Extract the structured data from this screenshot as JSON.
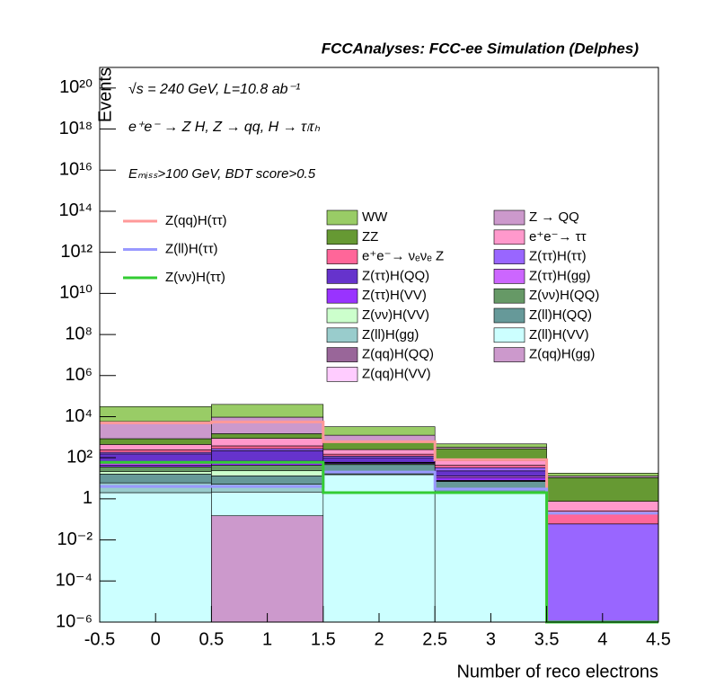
{
  "chart_data": {
    "type": "histogram",
    "stacked": true,
    "log_y": true,
    "title": "FCCAnalyses: FCC-ee Simulation (Delphes)",
    "annotations": [
      "√s = 240 GeV, L=10.8 ab⁻¹",
      "e⁺e⁻ → Z H, Z → qq, H → τₗτₕ",
      "Eₘᵢₛₛ>100 GeV, BDT score>0.5"
    ],
    "xlabel": "Number of reco electrons",
    "ylabel": "Events",
    "bins": [
      -0.5,
      0.5,
      1.5,
      2.5,
      3.5,
      4.5
    ],
    "xlim": [
      -0.5,
      4.5
    ],
    "xticks": [
      -0.5,
      0,
      0.5,
      1,
      1.5,
      2,
      2.5,
      3,
      3.5,
      4,
      4.5
    ],
    "ylim": [
      1e-06,
      1e+21
    ],
    "yticks": [
      {
        "value": 1e+20,
        "label": "10²⁰"
      },
      {
        "value": 1e+18,
        "label": "10¹⁸"
      },
      {
        "value": 1e+16,
        "label": "10¹⁶"
      },
      {
        "value": 100000000000000.0,
        "label": "10¹⁴"
      },
      {
        "value": 1000000000000.0,
        "label": "10¹²"
      },
      {
        "value": 10000000000.0,
        "label": "10¹⁰"
      },
      {
        "value": 100000000.0,
        "label": "10⁸"
      },
      {
        "value": 1000000.0,
        "label": "10⁶"
      },
      {
        "value": 10000.0,
        "label": "10⁴"
      },
      {
        "value": 100,
        "label": "10²"
      },
      1,
      {
        "value": 0.01,
        "label": "10⁻²"
      },
      {
        "value": 0.0001,
        "label": "10⁻⁴"
      },
      {
        "value": 1e-06,
        "label": "10⁻⁶"
      }
    ],
    "signals": [
      {
        "name": "Z(qq)H(ττ)",
        "color": "#ff9999",
        "values": [
          5000,
          5500,
          600,
          80,
          0
        ]
      },
      {
        "name": "Z(ll)H(ττ)",
        "color": "#9999ff",
        "values": [
          4,
          4,
          20,
          3,
          0.2
        ]
      },
      {
        "name": "Z(νν)H(ττ)",
        "color": "#33cc33",
        "values": [
          60,
          60,
          2,
          2,
          0
        ]
      }
    ],
    "series": [
      {
        "name": "WW",
        "color": "#99cc66",
        "values": [
          25000,
          30000,
          2000,
          150,
          5
        ]
      },
      {
        "name": "Z → QQ",
        "color": "#cc99cc",
        "values": [
          5000,
          8000,
          600,
          50,
          2
        ]
      },
      {
        "name": "ZZ",
        "color": "#669933",
        "values": [
          400,
          600,
          400,
          200,
          10
        ]
      },
      {
        "name": "e⁺e⁻→ ττ",
        "color": "#ff99cc",
        "values": [
          200,
          500,
          100,
          30,
          0.5
        ]
      },
      {
        "name": "e⁺e⁻→ νₑνₑ Z",
        "color": "#ff6699",
        "values": [
          60,
          100,
          30,
          10,
          0.2
        ]
      },
      {
        "name": "Z(ττ)H(ττ)",
        "color": "#9966ff",
        "values": [
          30,
          60,
          20,
          10,
          0.06
        ]
      },
      {
        "name": "Z(ττ)H(QQ)",
        "color": "#6633cc",
        "values": [
          100,
          150,
          40,
          10,
          0
        ]
      },
      {
        "name": "Z(ττ)H(gg)",
        "color": "#cc66ff",
        "values": [
          10,
          10,
          3,
          2,
          0
        ]
      },
      {
        "name": "Z(ττ)H(VV)",
        "color": "#9933ff",
        "values": [
          8,
          15,
          5,
          3,
          0
        ]
      },
      {
        "name": "Z(νν)H(QQ)",
        "color": "#669966",
        "values": [
          15,
          20,
          5,
          0.5,
          0
        ]
      },
      {
        "name": "Z(νν)H(VV)",
        "color": "#ccffcc",
        "values": [
          5,
          10,
          0.5,
          0.3,
          0
        ]
      },
      {
        "name": "Z(ll)H(QQ)",
        "color": "#669999",
        "values": [
          10,
          8,
          30,
          5,
          0
        ]
      },
      {
        "name": "Z(ll)H(gg)",
        "color": "#99cccc",
        "values": [
          4,
          3,
          1.5,
          0.07,
          0
        ]
      },
      {
        "name": "Z(ll)H(VV)",
        "color": "#ccffff",
        "values": [
          2,
          2,
          15,
          2,
          0
        ]
      },
      {
        "name": "Z(qq)H(QQ)",
        "color": "#996699",
        "values": [
          0,
          0,
          0,
          0,
          0
        ]
      },
      {
        "name": "Z(qq)H(gg)",
        "color": "#cc99cc",
        "values": [
          0,
          0.15,
          0,
          0,
          0
        ]
      },
      {
        "name": "Z(qq)H(VV)",
        "color": "#ffccff",
        "values": [
          0,
          0,
          0,
          0,
          0
        ]
      }
    ]
  }
}
